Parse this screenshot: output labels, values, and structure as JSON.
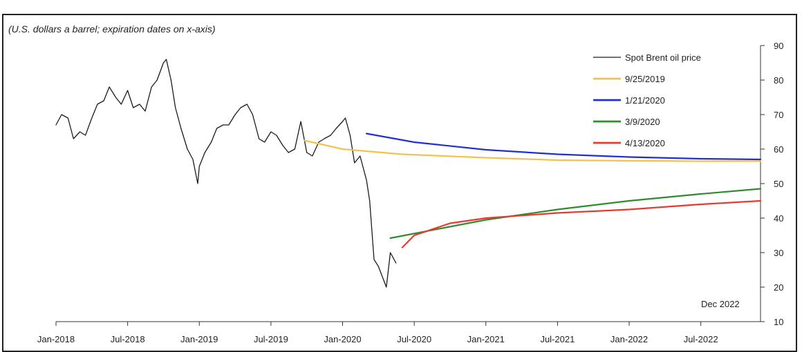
{
  "chart_data": {
    "type": "line",
    "subtitle": "(U.S. dollars a barrel; expiration dates on x-axis)",
    "annotation": "Dec 2022",
    "x_tick_labels": [
      "Jan-2018",
      "Jul-2018",
      "Jan-2019",
      "Jul-2019",
      "Jan-2020",
      "Jul-2020",
      "Jan-2021",
      "Jul-2021",
      "Jan-2022",
      "Jul-2022"
    ],
    "y_tick_labels": [
      "10",
      "20",
      "30",
      "40",
      "50",
      "60",
      "70",
      "80",
      "90"
    ],
    "xlim": [
      "2018-01",
      "2022-12"
    ],
    "ylim": [
      10,
      90
    ],
    "legend_position": "top-right",
    "series": [
      {
        "name": "Spot Brent oil price",
        "color": "#1a1a1a",
        "width": 1.3,
        "points": [
          [
            "2018-01",
            67
          ],
          [
            "2018-01-15",
            70
          ],
          [
            "2018-02",
            69
          ],
          [
            "2018-02-15",
            63
          ],
          [
            "2018-03",
            65
          ],
          [
            "2018-03-15",
            64
          ],
          [
            "2018-04",
            69
          ],
          [
            "2018-04-15",
            73
          ],
          [
            "2018-05",
            74
          ],
          [
            "2018-05-15",
            78
          ],
          [
            "2018-06",
            75
          ],
          [
            "2018-06-15",
            73
          ],
          [
            "2018-07",
            77
          ],
          [
            "2018-07-15",
            72
          ],
          [
            "2018-08",
            73
          ],
          [
            "2018-08-15",
            71
          ],
          [
            "2018-09",
            78
          ],
          [
            "2018-09-15",
            80
          ],
          [
            "2018-10",
            85
          ],
          [
            "2018-10-08",
            86
          ],
          [
            "2018-10-20",
            80
          ],
          [
            "2018-11",
            72
          ],
          [
            "2018-11-15",
            66
          ],
          [
            "2018-12",
            60
          ],
          [
            "2018-12-15",
            57
          ],
          [
            "2018-12-27",
            50
          ],
          [
            "2019-01",
            55
          ],
          [
            "2019-01-15",
            59
          ],
          [
            "2019-02",
            62
          ],
          [
            "2019-02-15",
            66
          ],
          [
            "2019-03",
            67
          ],
          [
            "2019-03-15",
            67
          ],
          [
            "2019-04",
            70
          ],
          [
            "2019-04-15",
            72
          ],
          [
            "2019-05",
            73
          ],
          [
            "2019-05-15",
            70
          ],
          [
            "2019-06",
            63
          ],
          [
            "2019-06-15",
            62
          ],
          [
            "2019-07",
            65
          ],
          [
            "2019-07-15",
            64
          ],
          [
            "2019-08",
            61
          ],
          [
            "2019-08-15",
            59
          ],
          [
            "2019-09",
            60
          ],
          [
            "2019-09-16",
            68
          ],
          [
            "2019-10",
            59
          ],
          [
            "2019-10-15",
            58
          ],
          [
            "2019-11",
            62
          ],
          [
            "2019-11-15",
            63
          ],
          [
            "2019-12",
            64
          ],
          [
            "2019-12-15",
            66
          ],
          [
            "2020-01",
            68
          ],
          [
            "2020-01-08",
            69
          ],
          [
            "2020-01-20",
            64
          ],
          [
            "2020-02",
            56
          ],
          [
            "2020-02-15",
            58
          ],
          [
            "2020-03",
            51
          ],
          [
            "2020-03-09",
            45
          ],
          [
            "2020-03-20",
            28
          ],
          [
            "2020-04",
            26
          ],
          [
            "2020-04-21",
            20
          ],
          [
            "2020-05",
            30
          ],
          [
            "2020-05-15",
            27
          ]
        ]
      },
      {
        "name": "9/25/2019",
        "color": "#f2c14e",
        "width": 2.2,
        "points": [
          [
            "2019-09-25",
            62.5
          ],
          [
            "2020-01",
            60
          ],
          [
            "2020-06",
            58.5
          ],
          [
            "2021-01",
            57.5
          ],
          [
            "2021-07",
            56.8
          ],
          [
            "2022-01",
            56.6
          ],
          [
            "2022-07",
            56.5
          ],
          [
            "2022-12",
            56.5
          ]
        ]
      },
      {
        "name": "1/21/2020",
        "color": "#1f2ed6",
        "width": 2.2,
        "points": [
          [
            "2020-03",
            64.5
          ],
          [
            "2020-07",
            62
          ],
          [
            "2021-01",
            59.8
          ],
          [
            "2021-07",
            58.5
          ],
          [
            "2022-01",
            57.7
          ],
          [
            "2022-07",
            57.2
          ],
          [
            "2022-12",
            57
          ]
        ]
      },
      {
        "name": "3/9/2020",
        "color": "#2e8b2e",
        "width": 2.2,
        "points": [
          [
            "2020-05",
            34.2
          ],
          [
            "2021-01",
            39.5
          ],
          [
            "2021-07",
            42.5
          ],
          [
            "2022-01",
            45
          ],
          [
            "2022-07",
            47
          ],
          [
            "2022-12",
            48.5
          ]
        ]
      },
      {
        "name": "4/13/2020",
        "color": "#e8392e",
        "width": 2.2,
        "points": [
          [
            "2020-06",
            31.5
          ],
          [
            "2020-07",
            35
          ],
          [
            "2020-10",
            38.5
          ],
          [
            "2021-01",
            40
          ],
          [
            "2021-07",
            41.5
          ],
          [
            "2022-01",
            42.5
          ],
          [
            "2022-07",
            44
          ],
          [
            "2022-12",
            45
          ]
        ]
      }
    ]
  }
}
